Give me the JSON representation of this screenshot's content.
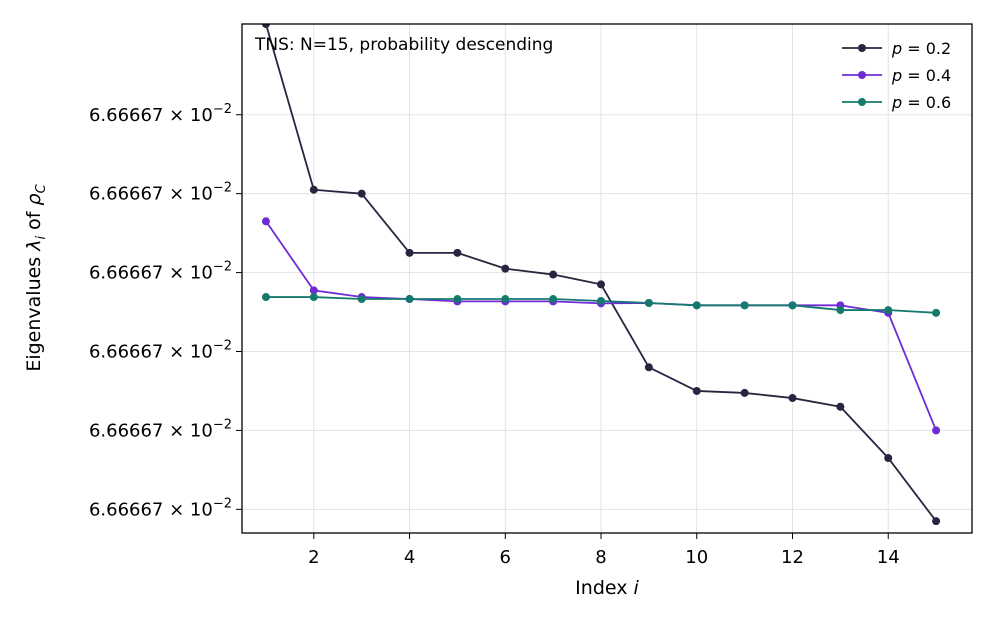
{
  "chart_data": {
    "type": "line",
    "title": "",
    "annotation": "TNS: N=15, probability descending",
    "xlabel": "Index i",
    "ylabel": "Eigenvalues λ_i of ρ_C",
    "xlim": [
      0.5,
      15.75
    ],
    "ylim": [
      0.4,
      13.3
    ],
    "x_ticks": [
      2,
      4,
      6,
      8,
      10,
      12,
      14
    ],
    "x_tick_labels": [
      "2",
      "4",
      "6",
      "8",
      "10",
      "12",
      "14"
    ],
    "y_ticks": [
      1,
      3,
      5,
      7,
      9,
      11
    ],
    "y_tick_mantissa": "6.66667",
    "y_tick_labels": [
      "6.66667×10^-2",
      "6.66667×10^-2",
      "6.66667×10^-2",
      "6.66667×10^-2",
      "6.66667×10^-2",
      "6.66667×10^-2"
    ],
    "y_tick_base": "× 10",
    "y_tick_exp": "−2",
    "grid": true,
    "legend_position": "top-right",
    "x": [
      1,
      2,
      3,
      4,
      5,
      6,
      7,
      8,
      9,
      10,
      11,
      12,
      13,
      14,
      15
    ],
    "series": [
      {
        "name": "p = 0.2",
        "label_p": "p",
        "label_val": " = 0.2",
        "color": "#262640",
        "values": [
          13.3,
          9.1,
          9.0,
          7.5,
          7.5,
          7.1,
          6.95,
          6.7,
          4.6,
          4.0,
          3.95,
          3.82,
          3.6,
          2.3,
          0.7
        ]
      },
      {
        "name": "p = 0.4",
        "label_p": "p",
        "label_val": " = 0.4",
        "color": "#6f2bd6",
        "values": [
          8.3,
          6.55,
          6.38,
          6.33,
          6.27,
          6.27,
          6.27,
          6.22,
          6.23,
          6.17,
          6.17,
          6.17,
          6.17,
          5.98,
          3.0
        ]
      },
      {
        "name": "p = 0.6",
        "label_p": "p",
        "label_val": " = 0.6",
        "color": "#157a6e",
        "values": [
          6.38,
          6.38,
          6.33,
          6.33,
          6.33,
          6.33,
          6.33,
          6.28,
          6.23,
          6.17,
          6.17,
          6.17,
          6.05,
          6.05,
          5.98
        ]
      }
    ]
  }
}
